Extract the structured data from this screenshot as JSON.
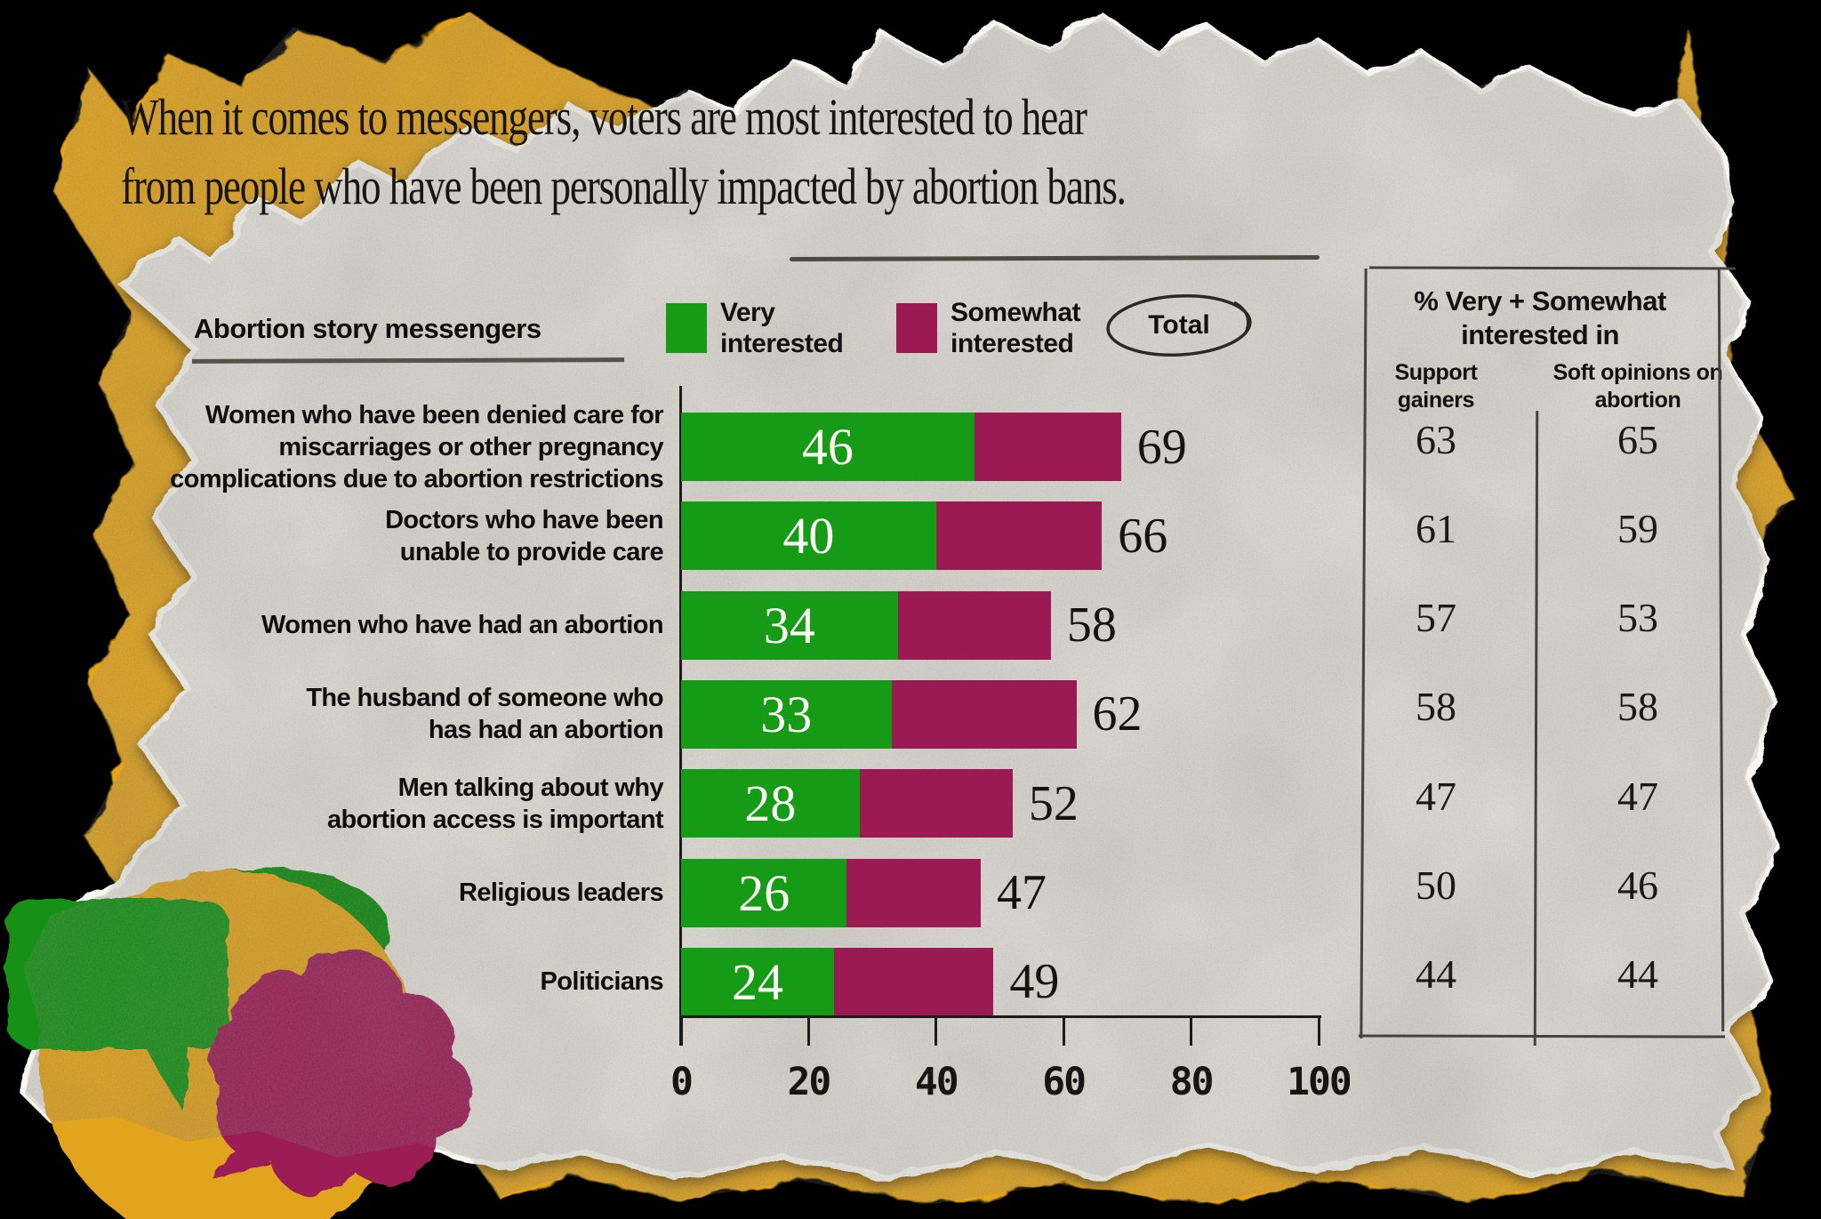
{
  "title": {
    "line1": "When it comes to messengers, voters are most interested to hear",
    "line2": "from people who have been personally impacted by abortion bans."
  },
  "chart": {
    "section_label": "Abortion story messengers",
    "legend": {
      "items": [
        {
          "name": "very",
          "lines": [
            "Very",
            "interested"
          ],
          "color": "#169b16"
        },
        {
          "name": "somewhat",
          "lines": [
            "Somewhat",
            "interested"
          ],
          "color": "#9b1a53"
        }
      ],
      "total_label": "Total"
    }
  },
  "chart_data": {
    "type": "bar",
    "orientation": "horizontal",
    "title": "Abortion story messengers",
    "categories": [
      "Women who have been denied care for miscarriages or other pregnancy complications due to abortion restrictions",
      "Doctors who have been unable to provide care",
      "Women who have had an abortion",
      "The husband of someone who has had an abortion",
      "Men talking about why abortion access is important",
      "Religious leaders",
      "Politicians"
    ],
    "category_lines": [
      [
        "Women who have been denied care for",
        "miscarriages or other pregnancy",
        "complications due to abortion restrictions"
      ],
      [
        "Doctors who have been",
        "unable to provide care"
      ],
      [
        "Women who have had an abortion"
      ],
      [
        "The husband of someone who",
        "has had an abortion"
      ],
      [
        "Men talking about why",
        "abortion access is important"
      ],
      [
        "Religious leaders"
      ],
      [
        "Politicians"
      ]
    ],
    "series": [
      {
        "name": "Very interested",
        "color": "#169b16",
        "values": [
          46,
          40,
          34,
          33,
          28,
          26,
          24
        ],
        "value_labels_shown": true
      },
      {
        "name": "Somewhat interested",
        "color": "#9b1a53",
        "values": [
          23,
          26,
          24,
          29,
          24,
          21,
          25
        ],
        "value_labels_shown": false
      }
    ],
    "totals": [
      69,
      66,
      58,
      62,
      52,
      47,
      49
    ],
    "x_axis": {
      "range": [
        0,
        100
      ],
      "ticks": [
        0,
        20,
        40,
        60,
        80,
        100
      ]
    },
    "legend_position": "top",
    "grid": false
  },
  "side_table": {
    "header": "% Very + Somewhat interested in",
    "columns": [
      "Support gainers",
      "Soft opinions on abortion"
    ],
    "rows": [
      [
        63,
        65
      ],
      [
        61,
        59
      ],
      [
        57,
        53
      ],
      [
        58,
        58
      ],
      [
        47,
        47
      ],
      [
        50,
        46
      ],
      [
        44,
        44
      ]
    ]
  },
  "colors": {
    "very_green": "#169b16",
    "somewhat_maroon": "#9b1a53",
    "paper_gray": "#e4e1da",
    "paper_yellow": "#e4a51c",
    "background": "#000000",
    "text": "#121110"
  }
}
